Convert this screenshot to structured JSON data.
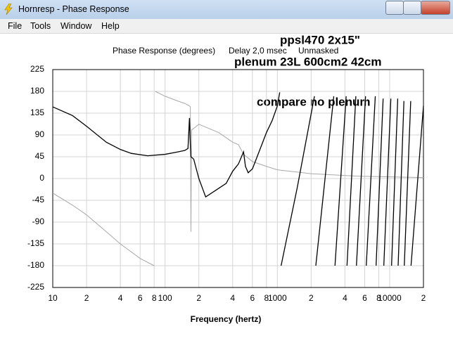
{
  "window": {
    "title": "Hornresp - Phase Response",
    "menu": [
      "File",
      "Tools",
      "Window",
      "Help"
    ]
  },
  "chart_data": {
    "type": "line",
    "title": "Phase Response (degrees)",
    "subtitle": [
      "Delay 2,0 msec",
      "Unmasked"
    ],
    "annotations": [
      "ppsl470 2x15\"",
      "plenum 23L 600cm2 42cm",
      "compare no plenum"
    ],
    "annotation_color": "#f47c20",
    "xlabel": "Frequency (hertz)",
    "xscale": "log",
    "xlim": [
      10,
      20000
    ],
    "ylim": [
      -225,
      225
    ],
    "xticks": [
      10,
      {
        "value": 20,
        "label": "2"
      },
      {
        "value": 40,
        "label": "4"
      },
      {
        "value": 60,
        "label": "6"
      },
      {
        "value": 80,
        "label": "8"
      },
      100,
      {
        "value": 200,
        "label": "2"
      },
      {
        "value": 400,
        "label": "4"
      },
      {
        "value": 600,
        "label": "6"
      },
      {
        "value": 800,
        "label": "8"
      },
      1000,
      {
        "value": 2000,
        "label": "2"
      },
      {
        "value": 4000,
        "label": "4"
      },
      {
        "value": 6000,
        "label": "6"
      },
      {
        "value": 8000,
        "label": "8"
      },
      10000,
      {
        "value": 20000,
        "label": "2"
      }
    ],
    "yticks": [
      225,
      180,
      135,
      90,
      45,
      0,
      -45,
      -90,
      -135,
      -180,
      -225
    ],
    "grid": true,
    "series": [
      {
        "color": "#a8a8a8",
        "x": [
          10,
          15,
          20,
          30,
          40,
          60,
          80,
          81,
          82,
          100,
          130,
          150,
          165,
          168,
          170,
          172,
          200,
          300,
          400,
          450,
          500,
          600,
          800,
          1000,
          2000,
          5000,
          20000
        ],
        "values": [
          -30,
          -55,
          -75,
          -110,
          -135,
          -165,
          -180,
          null,
          180,
          170,
          160,
          155,
          150,
          148,
          -110,
          100,
          112,
          95,
          75,
          70,
          50,
          35,
          25,
          18,
          10,
          5,
          2
        ]
      },
      {
        "color": "#000000",
        "x": [
          10,
          15,
          20,
          30,
          40,
          50,
          70,
          100,
          130,
          150,
          160,
          165,
          168,
          170,
          180,
          200,
          230,
          280,
          350,
          400,
          450,
          500,
          520,
          550,
          600,
          700,
          800,
          900,
          1000,
          1050,
          1060,
          1080,
          1500,
          2140,
          2170,
          2200,
          3180,
          3220,
          3260,
          4100,
          4140,
          4170,
          5000,
          5030,
          5060,
          6100,
          6150,
          6190,
          7450,
          7500,
          7570,
          8750,
          8800,
          8870,
          10250,
          10300,
          10400,
          11800,
          11850,
          11900,
          13400,
          13450,
          13500,
          15400,
          15450,
          15500,
          20000
        ],
        "values": [
          148,
          130,
          108,
          75,
          60,
          52,
          47,
          50,
          55,
          58,
          62,
          125,
          70,
          45,
          40,
          0,
          -38,
          -25,
          -10,
          15,
          30,
          55,
          25,
          12,
          20,
          60,
          95,
          120,
          150,
          178,
          null,
          -180,
          -20,
          170,
          null,
          -180,
          170,
          null,
          -180,
          170,
          null,
          -180,
          170,
          null,
          -180,
          170,
          null,
          -180,
          170,
          null,
          -180,
          165,
          null,
          -180,
          165,
          null,
          -180,
          165,
          null,
          -180,
          160,
          null,
          -180,
          160,
          null,
          -180,
          150
        ]
      }
    ]
  }
}
